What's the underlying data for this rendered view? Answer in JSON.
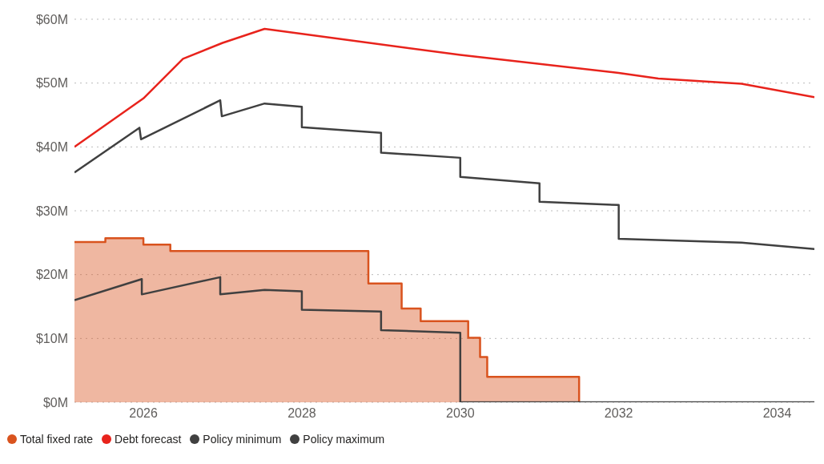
{
  "chart_data": {
    "type": "line",
    "xlim": [
      2025.13,
      2034.47
    ],
    "xticks": [
      2026,
      2028,
      2030,
      2032,
      2034
    ],
    "ylim": [
      0,
      60
    ],
    "yticks": [
      {
        "value": 0,
        "label": "$0M"
      },
      {
        "value": 10,
        "label": "$10M"
      },
      {
        "value": 20,
        "label": "$20M"
      },
      {
        "value": 30,
        "label": "$30M"
      },
      {
        "value": 40,
        "label": "$40M"
      },
      {
        "value": 50,
        "label": "$50M"
      },
      {
        "value": 60,
        "label": "$60M"
      }
    ],
    "grid": "y",
    "legend": "bottom left",
    "marker": "none",
    "line_style": "solid",
    "series": [
      {
        "name": "Total fixed rate",
        "type": "area",
        "color": "#d9531e",
        "x": [
          2025.13,
          2025.52,
          2025.52,
          2026.0,
          2026.0,
          2026.34,
          2026.34,
          2028.84,
          2028.84,
          2029.26,
          2029.26,
          2029.5,
          2029.5,
          2030.1,
          2030.1,
          2030.25,
          2030.25,
          2030.34,
          2030.34,
          2031.5,
          2031.5
        ],
        "values": [
          25.1,
          25.1,
          25.7,
          25.7,
          24.7,
          24.7,
          23.7,
          23.7,
          18.6,
          18.6,
          14.7,
          14.7,
          12.7,
          12.7,
          10.1,
          10.1,
          7.1,
          7.1,
          4.0,
          4.0,
          0
        ]
      },
      {
        "name": "Debt forecast",
        "color": "#e8231c",
        "x": [
          2025.13,
          2026.0,
          2026.5,
          2027.0,
          2027.53,
          2030.0,
          2032.0,
          2032.5,
          2033.55,
          2034.47
        ],
        "values": [
          40.0,
          47.6,
          53.8,
          56.3,
          58.5,
          54.4,
          51.6,
          50.7,
          49.9,
          47.8
        ]
      },
      {
        "name": "Policy minimum",
        "color": "#404040",
        "x": [
          2025.13,
          2025.98,
          2025.98,
          2026.97,
          2026.97,
          2027.53,
          2028.0,
          2028.0,
          2029.0,
          2029.0,
          2030.0,
          2030.0,
          2034.47
        ],
        "values": [
          16.0,
          19.3,
          16.9,
          19.6,
          16.9,
          17.6,
          17.4,
          14.5,
          14.2,
          11.3,
          10.9,
          0,
          0
        ]
      },
      {
        "name": "Policy maximum",
        "color": "#404040",
        "x": [
          2025.13,
          2025.95,
          2025.97,
          2026.97,
          2026.99,
          2027.53,
          2028.0,
          2028.0,
          2029.0,
          2029.0,
          2030.0,
          2030.0,
          2031.0,
          2031.0,
          2032.0,
          2032.0,
          2033.55,
          2034.47
        ],
        "values": [
          36.0,
          43.0,
          41.2,
          47.3,
          44.8,
          46.8,
          46.3,
          43.1,
          42.2,
          39.1,
          38.3,
          35.3,
          34.3,
          31.4,
          30.9,
          25.6,
          25.0,
          24.0
        ]
      }
    ]
  }
}
